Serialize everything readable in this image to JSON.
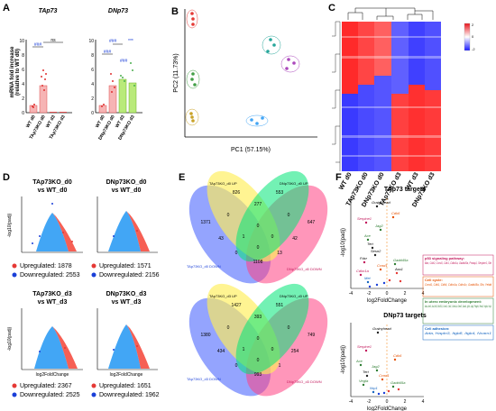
{
  "panels": {
    "A": "A",
    "B": "B",
    "C": "C",
    "D": "D",
    "E": "E",
    "F": "F"
  },
  "panelA": {
    "ylabel": [
      "mRNA fold increase",
      "(relative to WT d0)"
    ],
    "charts": [
      {
        "title": "TAp73",
        "categories": [
          "WT d0",
          "TAp73KO d0",
          "WT d3",
          "TAp73KO d3"
        ],
        "sig": [
          "###",
          "ns"
        ],
        "yticks": [
          "0",
          "2",
          "4",
          "6",
          "8",
          "10"
        ]
      },
      {
        "title": "DNp73",
        "categories": [
          "WT d0",
          "DNp73KO d0",
          "WT d3",
          "DNp73KO d3"
        ],
        "sig": [
          "###",
          "###",
          "***",
          "###"
        ],
        "yticks": [
          "0",
          "2",
          "4",
          "6",
          "8",
          "10"
        ]
      }
    ]
  },
  "panelB": {
    "xlabel": "PC1 (57.15%)",
    "ylabel": "PC2 (11.73%)"
  },
  "panelC": {
    "columns": [
      "WT d0",
      "TAp73KO d0",
      "DNp73KO d0",
      "TAp73KO d3",
      "WT d3",
      "DNp73KO d3"
    ],
    "legend": [
      "2",
      "0",
      "-2"
    ]
  },
  "panelD": {
    "xlabel": "log2FoldChange",
    "ylabel": "-log10(padj)",
    "up_label": "Upregulated:",
    "down_label": "Downregulated:",
    "plots": [
      {
        "title1": "TAp73KO_d0",
        "title2": "vs WT_d0",
        "up": "1878",
        "down": "2553"
      },
      {
        "title1": "DNp73KO_d0",
        "title2": "vs WT_d0",
        "up": "1571",
        "down": "2156"
      },
      {
        "title1": "TAp73KO_d3",
        "title2": "vs WT_d3",
        "up": "2367",
        "down": "2525"
      },
      {
        "title1": "DNp73KO_d3",
        "title2": "vs WT_d3",
        "up": "1651",
        "down": "1962"
      }
    ]
  },
  "panelE": {
    "venn_d0": {
      "labels": [
        "TAp73KO_d0 UP",
        "DNp73KO_d0 UP",
        "TAp73KO_d0 DOWN",
        "DNp73KO_d0 DOWN"
      ],
      "counts": [
        "1371",
        "826",
        "277",
        "553",
        "647",
        "0",
        "0",
        "0",
        "43",
        "1",
        "0",
        "42",
        "0",
        "13",
        "1108",
        "0"
      ]
    },
    "venn_d3": {
      "labels": [
        "TAp73KO_d3 UP",
        "DNp73KO_d3 UP",
        "TAp73KO_d3 DOWN",
        "DNp73KO_d3 DOWN"
      ],
      "counts": [
        "1380",
        "1427",
        "393",
        "551",
        "749",
        "0",
        "0",
        "0",
        "434",
        "1",
        "0",
        "254",
        "0",
        "1",
        "993",
        "0"
      ]
    }
  },
  "panelF": {
    "xlabel": "log2FoldChange",
    "ylabel": "-log10(padj)",
    "top_title": "TAp73 targets",
    "bottom_title": "DNp73 targets",
    "xticks": [
      "-4",
      "-2",
      "0",
      "2",
      "4"
    ],
    "top_genes": [
      "Grainyhead",
      "Serpine1",
      "Jag2",
      "Cdk6",
      "Ace",
      "Tert",
      "Sesn2",
      "Fdxr",
      "Ccnd1",
      "Cdkn1a",
      "Gadd45a",
      "Ass1",
      "Met"
    ],
    "bottom_genes": [
      "Grainyhead",
      "Serpine1",
      "Ace",
      "Cdk6",
      "Jag2",
      "Tert",
      "Ccnd1",
      "Gadd45a",
      "Vegfa",
      "Nrp1"
    ],
    "legend": [
      {
        "head": "p53 signaling pathway:",
        "body": "Bax, Cdk2, Ccnd1, Cdk1, Cdkn1a, Gadd45a, Pmaip1, Serpine1, Sfn",
        "color": "#c2185b"
      },
      {
        "head": "Cell cycle:",
        "body": "Ccnd1, Cdk1, Cdk6, Cdkn1a, Cdkn1c, Gadd45a, Sfn, Yeldd",
        "color": "#e65100"
      },
      {
        "head": "In utero embryonic development:",
        "body": "Ada, Ace2, Aa, Bcl2, Bcl2l11, Ccnd1, Cdk1, Cdkn1a, Cited2, Gata1, Igf1r, Jag2, Pdgfrb, Tead1, Vegfa, Vcp1",
        "color": "#2e7d32"
      },
      {
        "head": "Cell adhesion:",
        "body": "Ada, Hapln3, Itgb8, Itgb4, Ncam1",
        "color": "#1565c0"
      }
    ]
  }
}
